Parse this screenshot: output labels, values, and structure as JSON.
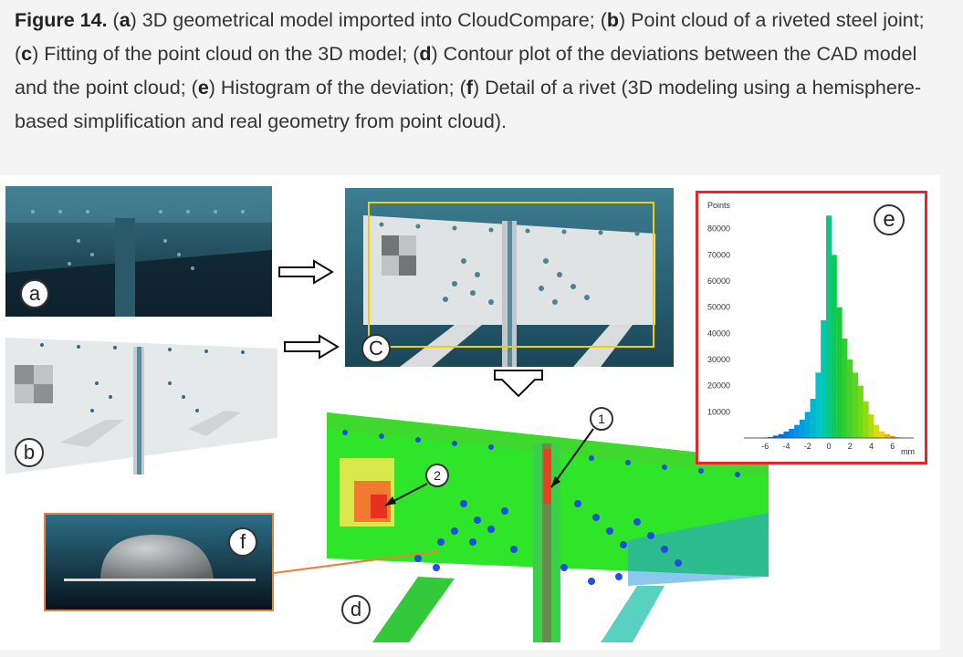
{
  "caption": {
    "figure_label": "Figure 14.",
    "parts": [
      {
        "text": " (",
        "bold": false
      },
      {
        "text": "a",
        "bold": true
      },
      {
        "text": ") 3D geometrical model imported into CloudCompare; (",
        "bold": false
      },
      {
        "text": "b",
        "bold": true
      },
      {
        "text": ") Point cloud of a riveted steel joint; (",
        "bold": false
      },
      {
        "text": "c",
        "bold": true
      },
      {
        "text": ") Fitting of the point cloud on the 3D model; (",
        "bold": false
      },
      {
        "text": "d",
        "bold": true
      },
      {
        "text": ") Contour plot of the deviations between the CAD model and the point cloud; (",
        "bold": false
      },
      {
        "text": "e",
        "bold": true
      },
      {
        "text": ") Histogram of the deviation; (",
        "bold": false
      },
      {
        "text": "f",
        "bold": true
      },
      {
        "text": ") Detail of a rivet (3D modeling using a hemisphere-based simplification and real geometry from point cloud).",
        "bold": false
      }
    ]
  },
  "panels": {
    "a": {
      "label": "a"
    },
    "b": {
      "label": "b"
    },
    "c": {
      "label": "C"
    },
    "d": {
      "label": "d",
      "callout_1": "1",
      "callout_2": "2"
    },
    "e": {
      "label": "e"
    },
    "f": {
      "label": "f"
    }
  },
  "colors": {
    "model_teal": "#2b5e6f",
    "yellow_frame": "#f0d000",
    "red_frame": "#e8262a",
    "orange_frame": "#e8823a",
    "deviation_green": "#2ee52a"
  },
  "chart_data": {
    "type": "bar",
    "ylabel": "Points",
    "xlabel": "mm",
    "x_ticks": [
      -6,
      -4,
      -2,
      0,
      2,
      4,
      6
    ],
    "y_ticks": [
      10000,
      20000,
      30000,
      40000,
      50000,
      60000,
      70000,
      80000
    ],
    "ylim": [
      0,
      90000
    ],
    "xlim": [
      -8,
      8
    ],
    "x": [
      -7.5,
      -7,
      -6.5,
      -6,
      -5.5,
      -5,
      -4.5,
      -4,
      -3.5,
      -3,
      -2.5,
      -2,
      -1.5,
      -1,
      -0.5,
      0,
      0.5,
      1,
      1.5,
      2,
      2.5,
      3,
      3.5,
      4,
      4.5,
      5,
      5.5,
      6,
      6.5,
      7,
      7.5
    ],
    "values": [
      0,
      0,
      0,
      200,
      400,
      900,
      1500,
      2500,
      3500,
      5000,
      7000,
      10000,
      15000,
      25000,
      45000,
      85000,
      70000,
      50000,
      38000,
      30000,
      25000,
      20000,
      14000,
      9000,
      5000,
      2500,
      1500,
      800,
      300,
      0,
      0
    ]
  }
}
